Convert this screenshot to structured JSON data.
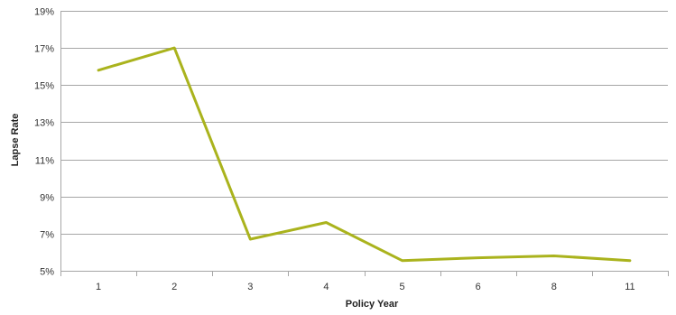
{
  "chart_data": {
    "type": "line",
    "title": "",
    "xlabel": "Policy Year",
    "ylabel": "Lapse Rate",
    "categories": [
      "1",
      "2",
      "3",
      "4",
      "5",
      "6",
      "8",
      "11"
    ],
    "series": [
      {
        "color": "#aab31d",
        "values": [
          15.8,
          17.0,
          6.7,
          7.6,
          5.55,
          5.7,
          5.8,
          5.55
        ]
      }
    ],
    "ylim": [
      5,
      19
    ],
    "yticks": [
      5,
      7,
      9,
      11,
      13,
      15,
      17,
      19
    ],
    "ytick_labels": [
      "5%",
      "7%",
      "9%",
      "11%",
      "13%",
      "15%",
      "17%",
      "19%"
    ],
    "grid": true,
    "legend": "none"
  }
}
